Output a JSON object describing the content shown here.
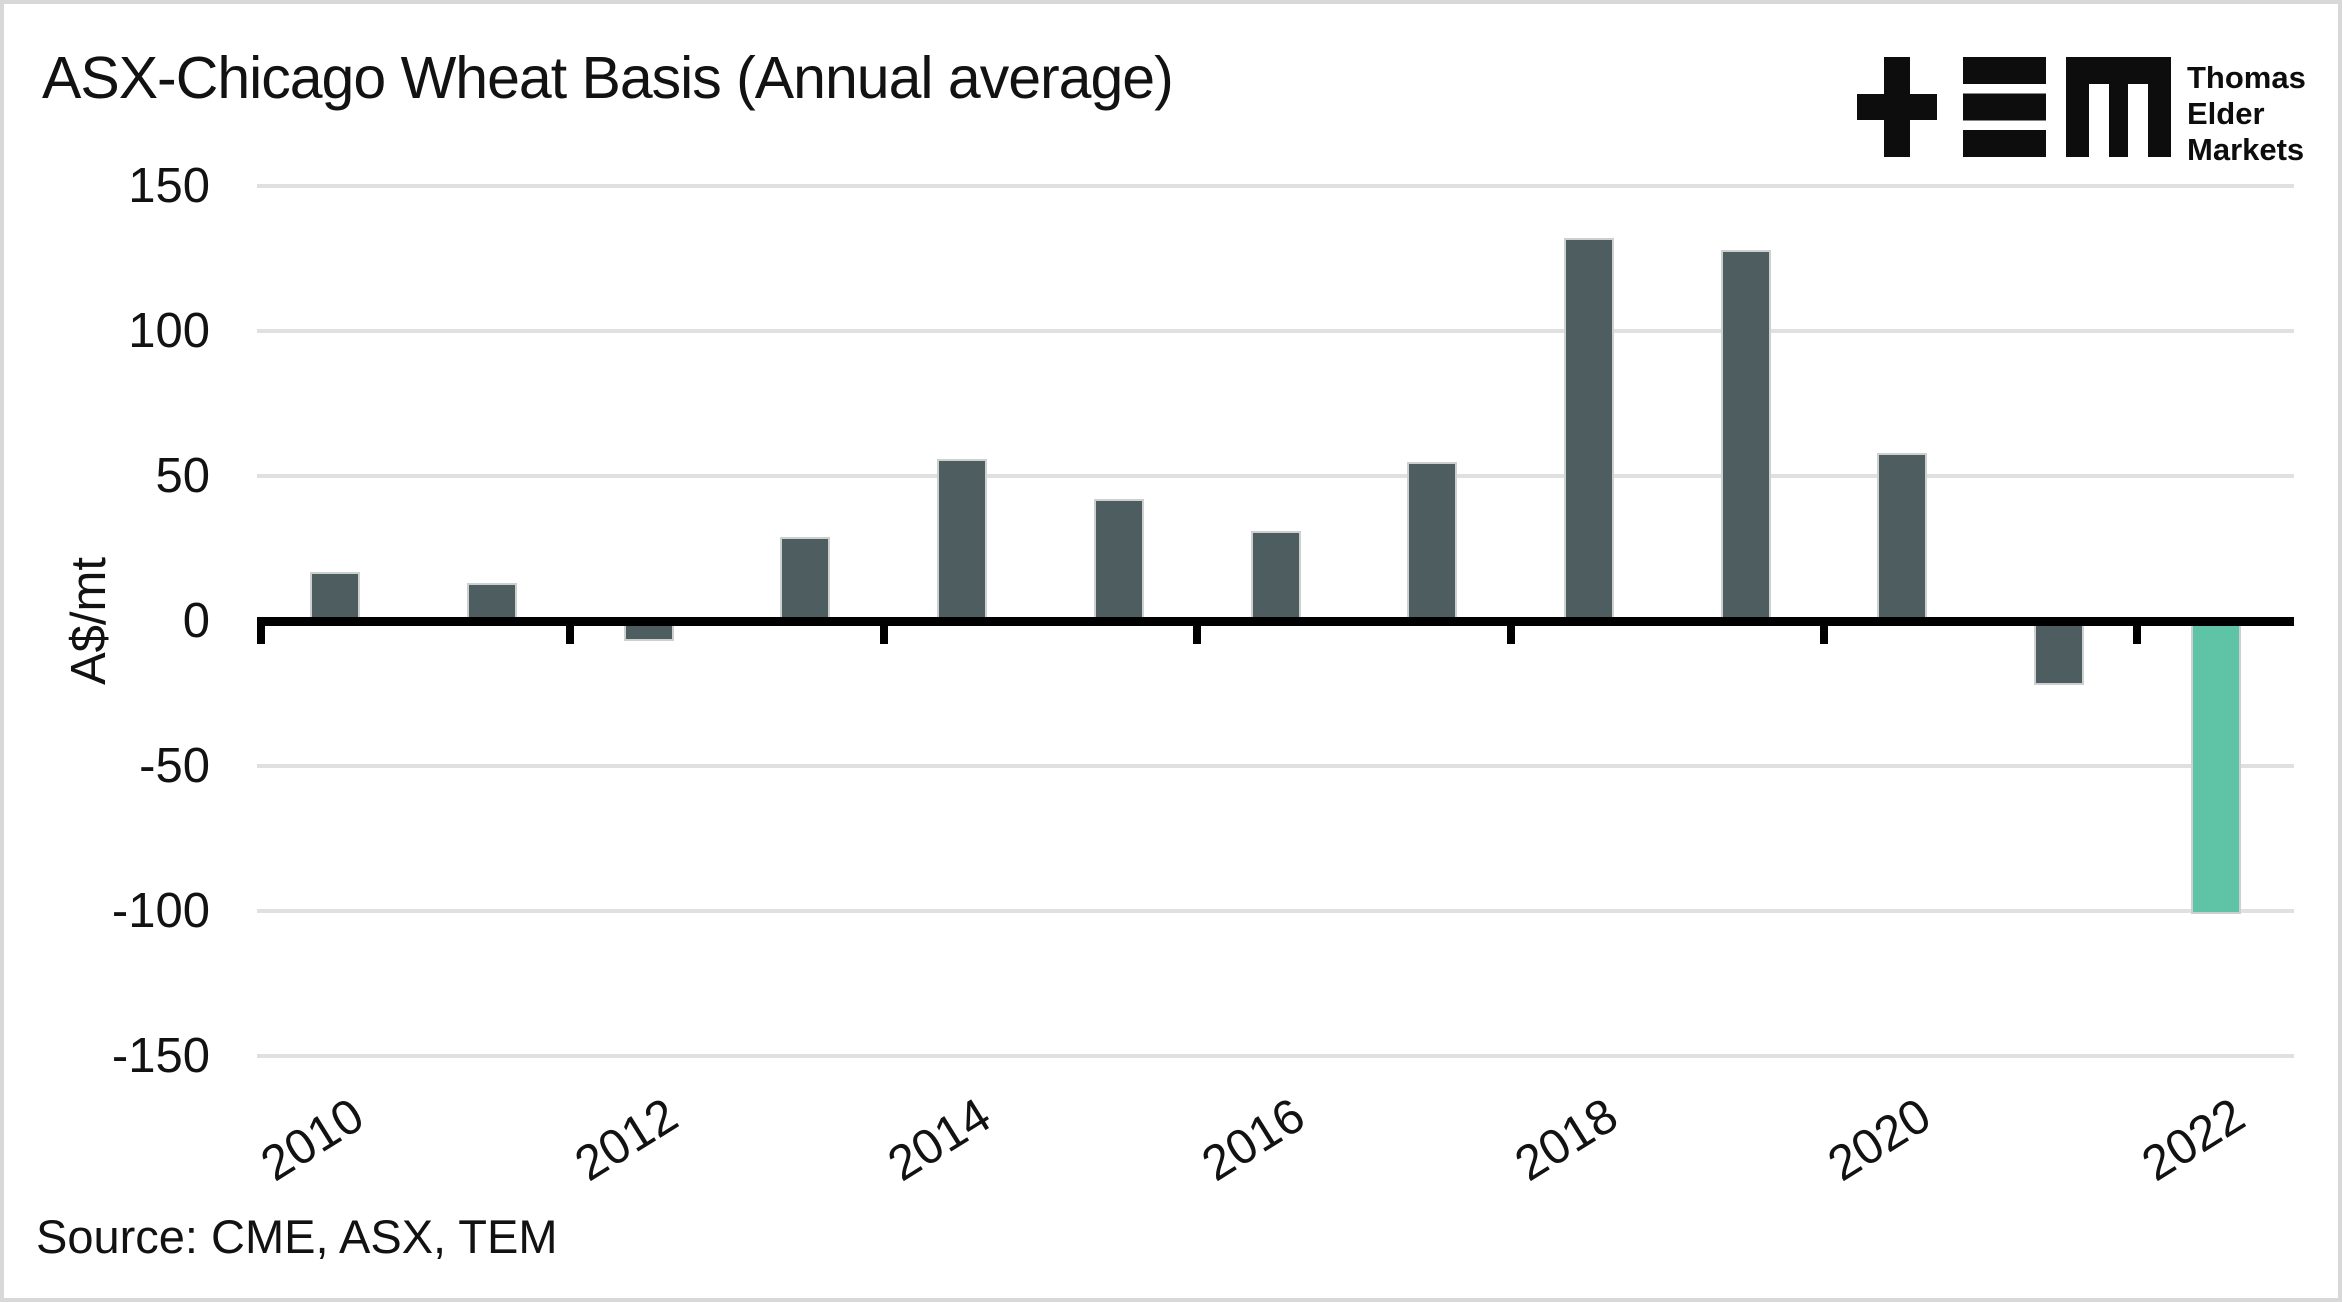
{
  "page": {
    "title": "ASX-Chicago Wheat Basis (Annual average)",
    "source_note": "Source: CME, ASX, TEM"
  },
  "logo": {
    "name": "Thomas Elder Markets",
    "lines": [
      "Thomas",
      "Elder",
      "Markets"
    ],
    "mark_glyphs": [
      "plus-icon",
      "triple-bar-icon",
      "m-block-icon"
    ]
  },
  "chart_data": {
    "type": "bar",
    "title": "ASX-Chicago Wheat Basis (Annual average)",
    "ylabel": "A$/mt",
    "categories": [
      "2010",
      "2011",
      "2012",
      "2013",
      "2014",
      "2015",
      "2016",
      "2017",
      "2018",
      "2019",
      "2020",
      "2021",
      "2022"
    ],
    "values": [
      17,
      13,
      -7,
      29,
      56,
      42,
      31,
      55,
      132,
      128,
      58,
      -22,
      -101
    ],
    "ylim": [
      -150,
      150
    ],
    "yticks": [
      150,
      100,
      50,
      0,
      -50,
      -100,
      -150
    ],
    "ytick_labels": [
      "150",
      "100",
      "50",
      "0",
      "-50",
      "-100",
      "-150"
    ],
    "xtick_labels": [
      "2010",
      "2012",
      "2014",
      "2016",
      "2018",
      "2020",
      "2022"
    ],
    "xtick_year_step": 2,
    "grid": "horizontal",
    "legend": "none",
    "bar_color": "#4d5d60",
    "highlight_color": "#5fc4a5",
    "highlight_category": "2022",
    "gridline_color": "#e0e0e0",
    "axis_color": "#000000",
    "source": "Source: CME, ASX, TEM"
  }
}
